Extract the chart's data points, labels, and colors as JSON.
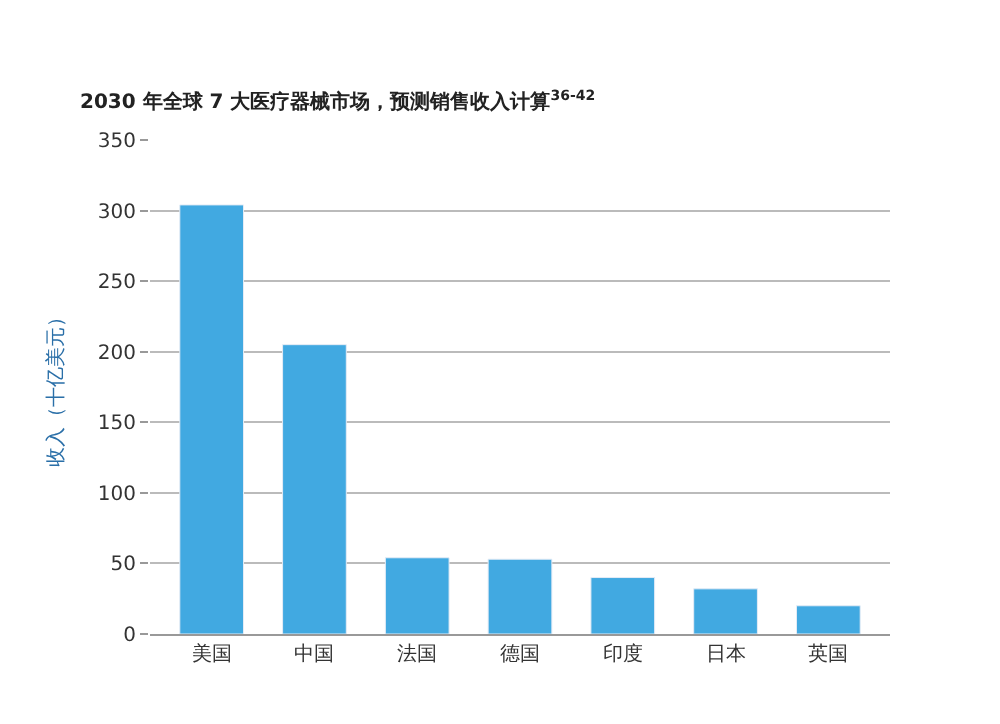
{
  "chart_data": {
    "type": "bar",
    "title": "2030 年全球 7 大医疗器械市场，预测销售收入计算$^{36-42}$",
    "ylabel": "收入（十亿美元）",
    "categories": [
      "美国",
      "中国",
      "法国",
      "德国",
      "印度",
      "日本",
      "英国"
    ],
    "values": [
      304,
      205,
      54,
      53,
      40,
      32,
      20
    ],
    "color": "#41a9e1",
    "ylim": [
      0,
      350
    ],
    "yticks": [
      0,
      50,
      100,
      150,
      200,
      250,
      300,
      350
    ],
    "grid": "y"
  }
}
